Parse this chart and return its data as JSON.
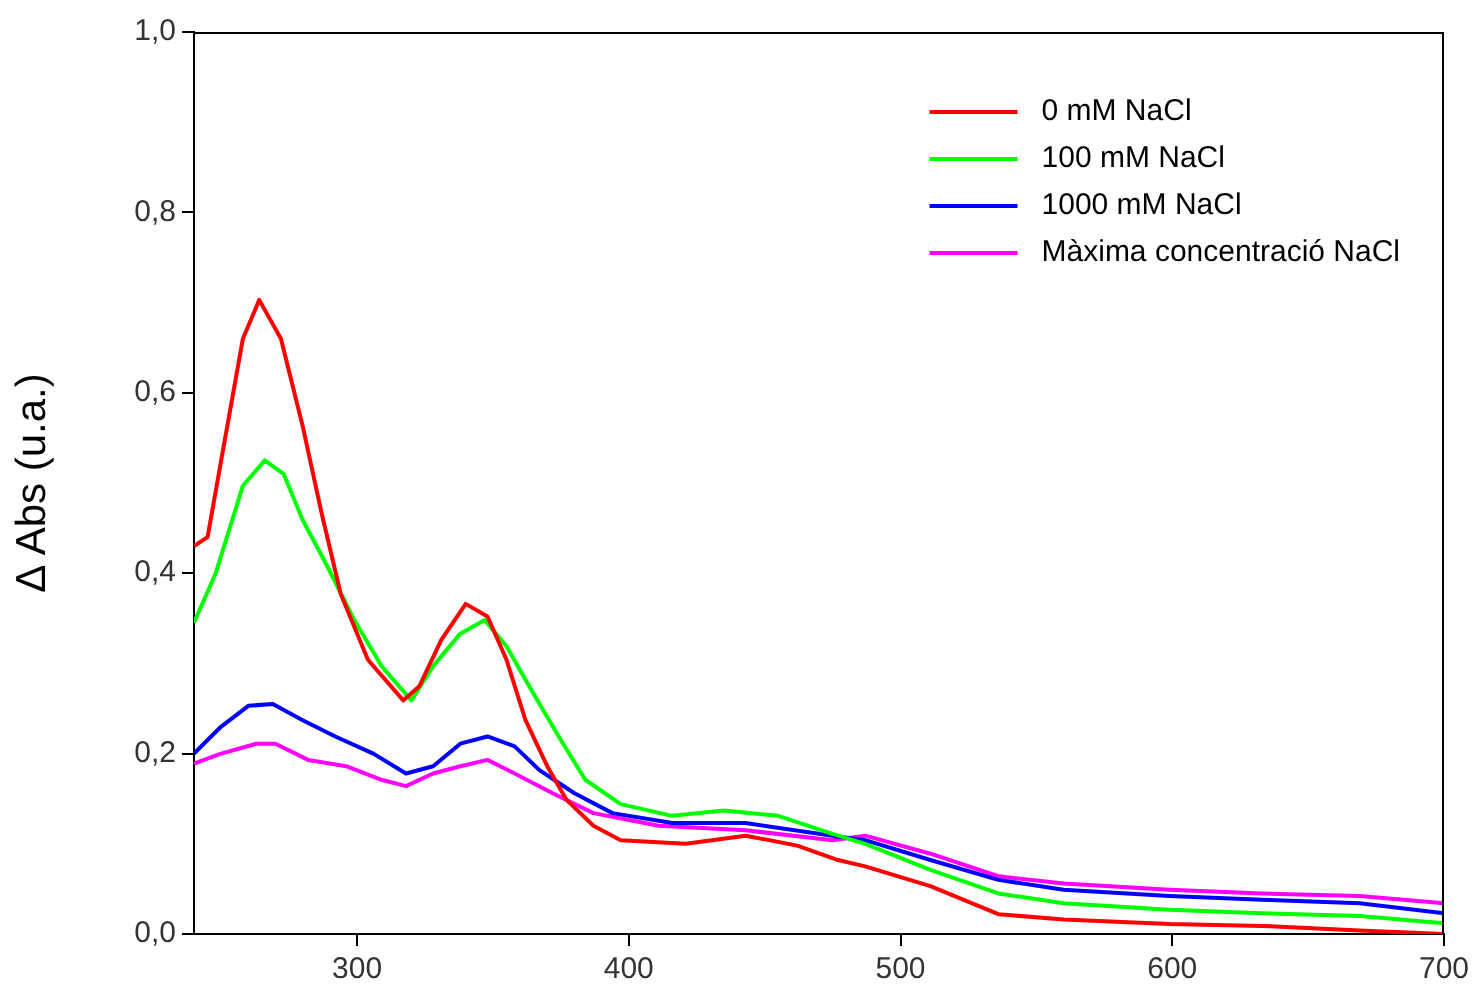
{
  "chart_data": {
    "type": "line",
    "ylabel": "Δ Abs (u.a.)",
    "xlim": [
      240,
      700
    ],
    "xticks": [
      300,
      400,
      500,
      600,
      700
    ],
    "ylim": [
      0,
      1
    ],
    "yticks": [
      {
        "value": 0,
        "label": "0,0"
      },
      {
        "value": 0.2,
        "label": "0,2"
      },
      {
        "value": 0.4,
        "label": "0,4"
      },
      {
        "value": 0.6,
        "label": "0,6"
      },
      {
        "value": 0.8,
        "label": "0,8"
      },
      {
        "value": 1,
        "label": "1,0"
      }
    ],
    "grid": false,
    "legend": "top right",
    "marker": "none",
    "line_style": "solid",
    "series": [
      {
        "name": "0 mM NaCl",
        "color": "#ff0000",
        "x": [
          240,
          245,
          250,
          258,
          264,
          272,
          280,
          287,
          294,
          304,
          317,
          323,
          331,
          340,
          348,
          355,
          362,
          370,
          377,
          387,
          397,
          421,
          443,
          462,
          477,
          487,
          511,
          536,
          560,
          599,
          633,
          669,
          700
        ],
        "values": [
          0.43,
          0.44,
          0.525,
          0.66,
          0.703,
          0.66,
          0.563,
          0.466,
          0.377,
          0.304,
          0.259,
          0.275,
          0.326,
          0.366,
          0.352,
          0.304,
          0.237,
          0.186,
          0.149,
          0.12,
          0.104,
          0.1,
          0.109,
          0.098,
          0.082,
          0.075,
          0.053,
          0.022,
          0.016,
          0.011,
          0.009,
          0.004,
          0.0
        ]
      },
      {
        "name": "100 mM NaCl",
        "color": "#00ff00",
        "x": [
          240,
          248,
          258,
          266,
          273,
          280,
          289,
          299,
          309,
          320,
          328,
          338,
          347,
          355,
          365,
          375,
          384,
          397,
          416,
          435,
          455,
          475,
          487,
          511,
          536,
          560,
          599,
          633,
          669,
          700
        ],
        "values": [
          0.345,
          0.4,
          0.497,
          0.525,
          0.51,
          0.459,
          0.408,
          0.348,
          0.297,
          0.259,
          0.297,
          0.333,
          0.348,
          0.319,
          0.266,
          0.215,
          0.171,
          0.144,
          0.131,
          0.137,
          0.131,
          0.111,
          0.1,
          0.071,
          0.045,
          0.034,
          0.027,
          0.023,
          0.02,
          0.012
        ]
      },
      {
        "name": "1000 mM NaCl",
        "color": "#0000ff",
        "x": [
          240,
          250,
          260,
          269,
          280,
          292,
          306,
          318,
          328,
          338,
          348,
          358,
          367,
          380,
          394,
          416,
          443,
          475,
          487,
          511,
          536,
          560,
          599,
          633,
          669,
          700
        ],
        "values": [
          0.2,
          0.23,
          0.253,
          0.255,
          0.237,
          0.219,
          0.2,
          0.178,
          0.186,
          0.211,
          0.219,
          0.208,
          0.182,
          0.156,
          0.134,
          0.123,
          0.123,
          0.109,
          0.104,
          0.082,
          0.06,
          0.049,
          0.042,
          0.038,
          0.034,
          0.023
        ]
      },
      {
        "name": "Màxima concentració NaCl",
        "color": "#ff00ff",
        "x": [
          240,
          250,
          263,
          270,
          282,
          296,
          309,
          318,
          328,
          338,
          348,
          358,
          372,
          387,
          411,
          443,
          475,
          487,
          511,
          536,
          560,
          599,
          633,
          669,
          700
        ],
        "values": [
          0.189,
          0.2,
          0.211,
          0.211,
          0.193,
          0.186,
          0.171,
          0.164,
          0.178,
          0.186,
          0.193,
          0.178,
          0.156,
          0.134,
          0.12,
          0.115,
          0.104,
          0.109,
          0.089,
          0.064,
          0.056,
          0.049,
          0.045,
          0.042,
          0.034
        ]
      }
    ]
  }
}
